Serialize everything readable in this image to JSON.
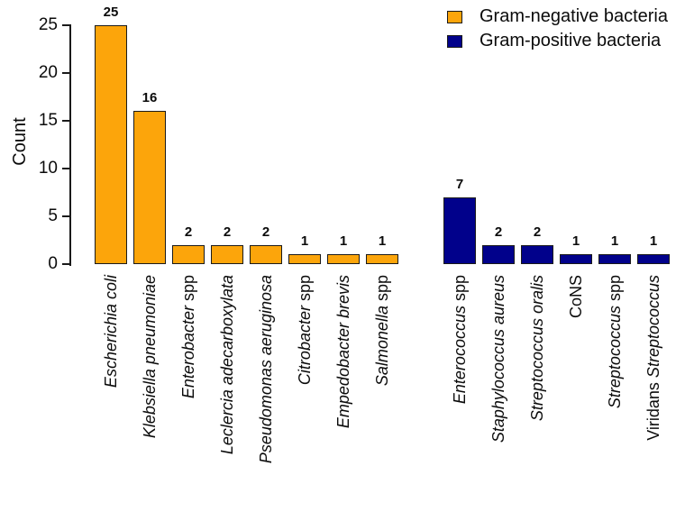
{
  "chart_data": {
    "type": "bar",
    "title": "",
    "xlabel": "",
    "ylabel": "Count",
    "ylim": [
      0,
      25
    ],
    "yticks": [
      0,
      5,
      10,
      15,
      20,
      25
    ],
    "grid": false,
    "legend_position": "top-right",
    "bar_border_color": "#1a1a1a",
    "groups": [
      {
        "name": "Gram-negative bacteria",
        "color": "#FCA50B"
      },
      {
        "name": "Gram-positive bacteria",
        "color": "#01018B"
      }
    ],
    "bars": [
      {
        "label": "Escherichia coli",
        "value": 25,
        "group": 0,
        "parts": [
          {
            "t": "Escherichia coli",
            "i": true
          }
        ]
      },
      {
        "label": "Klebsiella pneumoniae",
        "value": 16,
        "group": 0,
        "parts": [
          {
            "t": "Klebsiella pneumoniae",
            "i": true
          }
        ]
      },
      {
        "label": "Enterobacter spp",
        "value": 2,
        "group": 0,
        "parts": [
          {
            "t": "Enterobacter",
            "i": true
          },
          {
            "t": " spp",
            "i": false
          }
        ]
      },
      {
        "label": "Leclercia adecarboxylata",
        "value": 2,
        "group": 0,
        "parts": [
          {
            "t": "Leclercia adecarboxylata",
            "i": true
          }
        ]
      },
      {
        "label": "Pseudomonas aeruginosa",
        "value": 2,
        "group": 0,
        "parts": [
          {
            "t": "Pseudomonas aeruginosa",
            "i": true
          }
        ]
      },
      {
        "label": "Citrobacter spp",
        "value": 1,
        "group": 0,
        "parts": [
          {
            "t": "Citrobacter",
            "i": true
          },
          {
            "t": " spp",
            "i": false
          }
        ]
      },
      {
        "label": "Empedobacter brevis",
        "value": 1,
        "group": 0,
        "parts": [
          {
            "t": "Empedobacter brevis",
            "i": true
          }
        ]
      },
      {
        "label": "Salmonella spp",
        "value": 1,
        "group": 0,
        "parts": [
          {
            "t": "Salmonella",
            "i": true
          },
          {
            "t": " spp",
            "i": false
          }
        ]
      },
      {
        "label": "Enterococcus spp",
        "value": 7,
        "group": 1,
        "parts": [
          {
            "t": "Enterococcus",
            "i": true
          },
          {
            "t": " spp",
            "i": false
          }
        ]
      },
      {
        "label": "Staphylococcus aureus",
        "value": 2,
        "group": 1,
        "parts": [
          {
            "t": "Staphylococcus aureus",
            "i": true
          }
        ]
      },
      {
        "label": "Streptococcus oralis",
        "value": 2,
        "group": 1,
        "parts": [
          {
            "t": "Streptococcus oralis",
            "i": true
          }
        ]
      },
      {
        "label": "CoNS",
        "value": 1,
        "group": 1,
        "parts": [
          {
            "t": "CoNS",
            "i": false
          }
        ]
      },
      {
        "label": "Streptococcus spp",
        "value": 1,
        "group": 1,
        "parts": [
          {
            "t": "Streptococcus",
            "i": true
          },
          {
            "t": " spp",
            "i": false
          }
        ]
      },
      {
        "label": "Viridans Streptococcus",
        "value": 1,
        "group": 1,
        "parts": [
          {
            "t": "Viridans ",
            "i": false
          },
          {
            "t": "Streptococcus",
            "i": true
          }
        ]
      }
    ]
  }
}
